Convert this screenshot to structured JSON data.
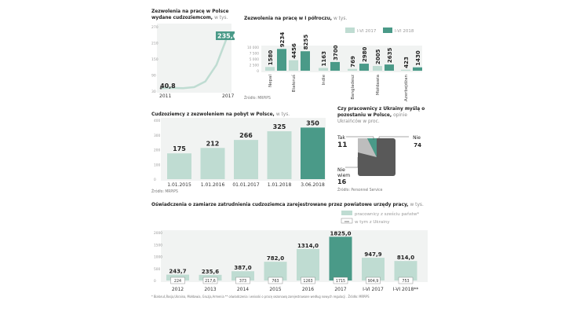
{
  "colors": {
    "light": "#bfdcd2",
    "dark": "#4a9a88",
    "band": "#f1f3f2",
    "pie_dark": "#595959",
    "pie_light": "#bdbdbd"
  },
  "chart_data": [
    {
      "type": "line",
      "title": "Zezwolenia na pracę w Polsce wydane cudzoziemcom,",
      "unit": "w tys.",
      "x": [
        2011,
        2012,
        2013,
        2014,
        2015,
        2016,
        2017
      ],
      "values": [
        40.8,
        42,
        41,
        45,
        66,
        128,
        235.6
      ],
      "x_tick_labels": [
        "2011",
        "2017"
      ],
      "y_ticks": [
        30,
        90,
        150,
        210,
        270
      ],
      "ylim": [
        30,
        270
      ],
      "labels": {
        "first": "40,8",
        "last": "235,6"
      }
    },
    {
      "type": "bar",
      "title": "Zezwolenia na pracę w I półroczu,",
      "unit": "w tys.",
      "categories": [
        "Nepal",
        "Białoruś",
        "Indie",
        "Bangladesz",
        "Mołdawia",
        "Azerbejdżan"
      ],
      "series": [
        {
          "name": "I-VI 2017",
          "values": [
            1580,
            4456,
            1163,
            769,
            2005,
            423
          ]
        },
        {
          "name": "I-VI 2018",
          "values": [
            9234,
            8255,
            3700,
            2980,
            2635,
            1430
          ]
        }
      ],
      "y_ticks": [
        "0",
        "2 500",
        "5 000",
        "7 500",
        "10 000"
      ],
      "ylim": [
        0,
        10000
      ],
      "legend": "top-right",
      "source": "Źródło: MRPiPS"
    },
    {
      "type": "bar",
      "title": "Cudzoziemcy z zezwoleniem na pobyt w Polsce,",
      "unit": "w tys.",
      "categories": [
        "1.01.2015",
        "1.01.2016",
        "01.01.2017",
        "1.01.2018",
        "3.06.2018"
      ],
      "values": [
        175,
        212,
        266,
        325,
        350
      ],
      "y_ticks": [
        0,
        100,
        200,
        300,
        400
      ],
      "ylim": [
        0,
        400
      ],
      "source": "Źródło: MRPiPS"
    },
    {
      "type": "pie",
      "title": "Czy pracownicy z Ukrainy myślą o pozostaniu w Polsce,",
      "subtitle": "opinie Ukraińców w proc.",
      "slices": [
        {
          "label": "Tak",
          "value": 11
        },
        {
          "label": "Nie",
          "value": 74
        },
        {
          "label": "Nie wiem",
          "value": 16
        }
      ],
      "source": "Źródło: Personnel Service"
    },
    {
      "type": "bar",
      "title": "Oświadczenia o zamiarze zatrudnienia cudzoziemca zarejestrowane przez powiatowe urzędy pracy,",
      "unit": "w tys.",
      "categories": [
        "2012",
        "2013",
        "2014",
        "2015",
        "2016",
        "2017",
        "I-VI 2017",
        "I-VI 2018**"
      ],
      "series": [
        {
          "name": "pracownicy z sześciu państw*",
          "values": [
            243.7,
            235.6,
            387.0,
            782.0,
            1314.0,
            1825.0,
            947.9,
            814.0
          ],
          "labels": [
            "243,7",
            "235,6",
            "387,0",
            "782,0",
            "1314,0",
            "1825,0",
            "947,9",
            "814,0"
          ]
        },
        {
          "name": "w tym z Ukrainy",
          "labels": [
            "224",
            "217,6",
            "373",
            "763",
            "1263",
            "1715",
            "904,9",
            "753"
          ]
        }
      ],
      "legend_box": "xxx",
      "y_ticks": [
        0,
        500,
        1000,
        1500,
        2000
      ],
      "ylim": [
        0,
        2000
      ],
      "footnote": "* Białoruś,Rosja,Ukraina, Mołdawia, Gruzja,Armenia ** oświadczenia i wnioski o pracę sezonową zarejestrowane według nowych regulacji . Źródło: MRPiPS"
    }
  ]
}
